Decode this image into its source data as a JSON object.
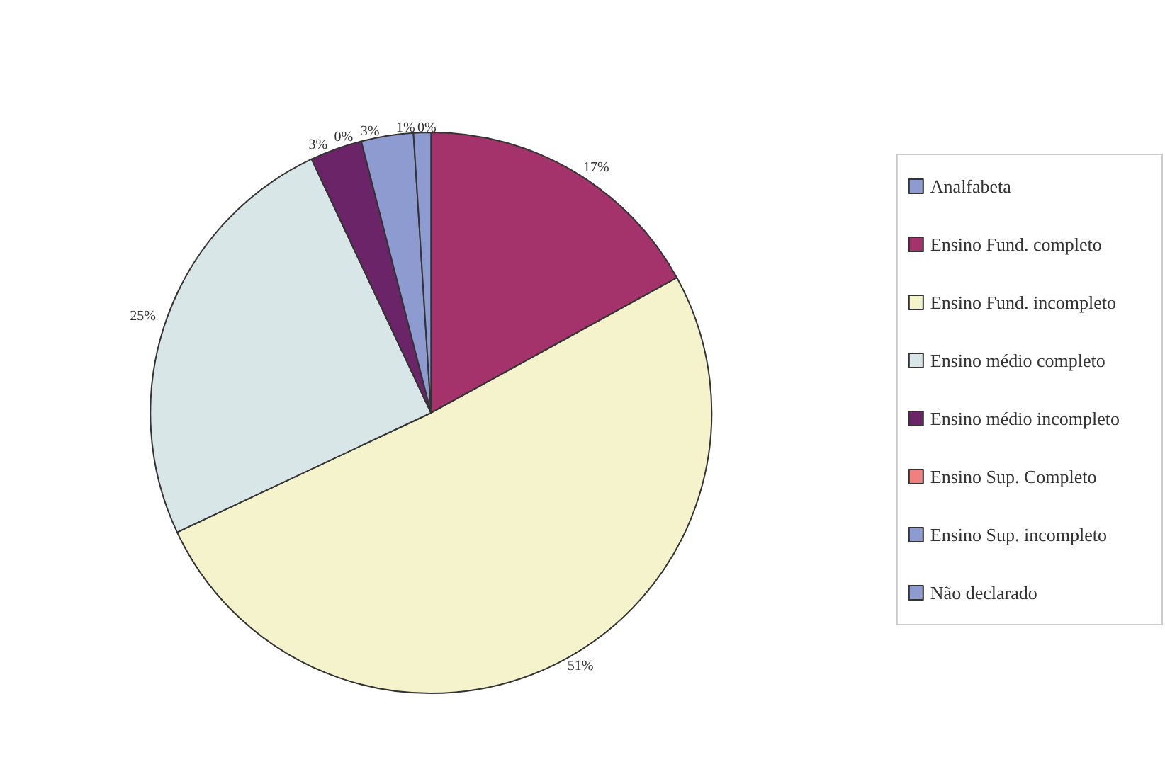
{
  "chart_data": {
    "type": "pie",
    "categories": [
      "Analfabeta",
      "Ensino Fund. completo",
      "Ensino Fund. incompleto",
      "Ensino médio completo",
      "Ensino médio incompleto",
      "Ensino Sup. Completo",
      "Ensino Sup. incompleto",
      "Não declarado"
    ],
    "values": [
      0,
      17,
      51,
      25,
      3,
      0,
      3,
      1
    ],
    "colors": [
      "#8e9bd0",
      "#a3336a",
      "#f5f3cc",
      "#d8e6e8",
      "#6b2467",
      "#f08080",
      "#8e9bd0",
      "#8e9bd0"
    ],
    "legend": "right",
    "value_labels": [
      "0%",
      "17%",
      "51%",
      "25%",
      "3%",
      "0%",
      "3%",
      "1%"
    ]
  }
}
